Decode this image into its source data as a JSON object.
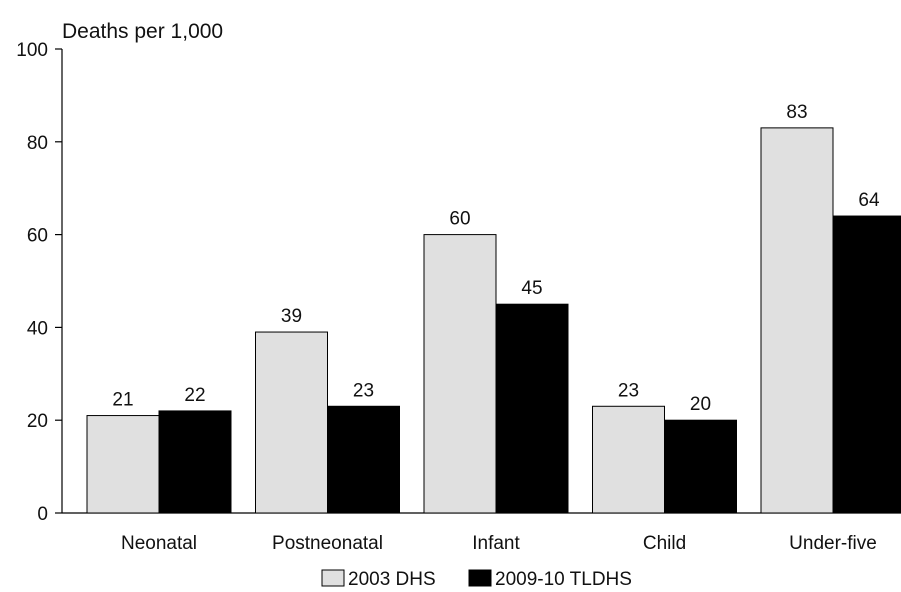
{
  "chart_data": {
    "type": "bar",
    "ylabel": "Deaths per 1,000",
    "xlabel": "",
    "ylim": [
      0,
      100
    ],
    "yticks": [
      0,
      20,
      40,
      60,
      80,
      100
    ],
    "categories": [
      "Neonatal",
      "Postneonatal",
      "Infant",
      "Child",
      "Under-five"
    ],
    "series": [
      {
        "name": "2003 DHS",
        "values": [
          21,
          39,
          60,
          23,
          83
        ],
        "color": "#e0e0e0"
      },
      {
        "name": "2009-10 TLDHS",
        "values": [
          22,
          23,
          45,
          20,
          64
        ],
        "color": "#000000"
      }
    ],
    "grid": false,
    "legend": "bottom-center"
  }
}
